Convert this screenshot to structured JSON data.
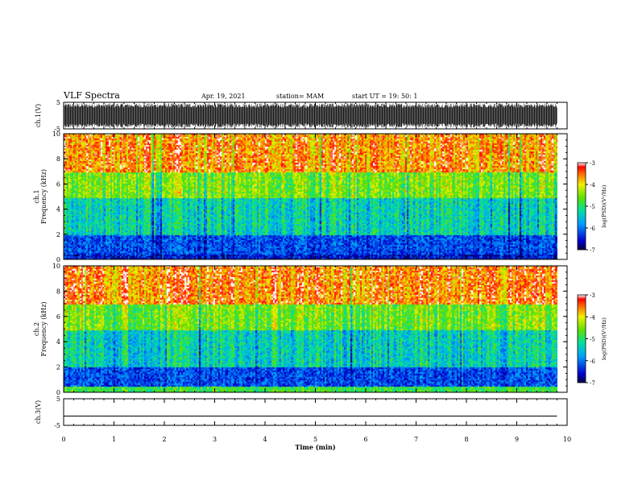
{
  "header": {
    "title": "VLF Spectra",
    "date": "Apr. 19, 2021",
    "station": "station= MAM",
    "start": "start  UT =   19: 50: 1"
  },
  "chart_data": [
    {
      "type": "line",
      "panel": "ch1-waveform",
      "ylabel": "ch.1(V)",
      "ylim": [
        -5,
        5
      ],
      "ytick_labels": [
        "5",
        "-5"
      ],
      "description_level": "dense noise spanning nearly full range"
    },
    {
      "type": "heatmap",
      "panel": "ch1-spectrogram",
      "ylabel": "ch.1\nFrequency  (kHz)",
      "ylim": [
        0,
        10
      ],
      "ytick_labels": [
        "0",
        "2",
        "4",
        "6",
        "8",
        "10"
      ],
      "colorbar": {
        "label": "log(PSD)(V²/Hz)",
        "range": [
          -7,
          -3
        ],
        "tick_labels": [
          "-3",
          "-4",
          "-5",
          "-6",
          "-7"
        ]
      },
      "bands_log_psd": [
        {
          "freq_khz": [
            0,
            0.5
          ],
          "level": -6.5
        },
        {
          "freq_khz": [
            0.5,
            2
          ],
          "level": -6.2
        },
        {
          "freq_khz": [
            2,
            5
          ],
          "level": -5.3
        },
        {
          "freq_khz": [
            5,
            7
          ],
          "level": -4.5
        },
        {
          "freq_khz": [
            7,
            10
          ],
          "level": -3.6
        }
      ]
    },
    {
      "type": "heatmap",
      "panel": "ch2-spectrogram",
      "ylabel": "ch.2\nFrequency  (kHz)",
      "ylim": [
        0,
        10
      ],
      "ytick_labels": [
        "0",
        "2",
        "4",
        "6",
        "8",
        "10"
      ],
      "colorbar": {
        "label": "log(PSD)(V²/Hz)",
        "range": [
          -7,
          -3
        ],
        "tick_labels": [
          "-3",
          "-4",
          "-5",
          "-6",
          "-7"
        ]
      },
      "bands_log_psd": [
        {
          "freq_khz": [
            0,
            0.5
          ],
          "level": -4.8
        },
        {
          "freq_khz": [
            0.5,
            2
          ],
          "level": -6.2
        },
        {
          "freq_khz": [
            2,
            5
          ],
          "level": -5.3
        },
        {
          "freq_khz": [
            5,
            7
          ],
          "level": -4.5
        },
        {
          "freq_khz": [
            7,
            10
          ],
          "level": -3.5
        }
      ]
    },
    {
      "type": "line",
      "panel": "ch3-waveform",
      "ylabel": "ch.3(V)",
      "ylim": [
        -5,
        5
      ],
      "ytick_labels": [
        "5",
        "-5"
      ],
      "x": [
        0,
        9.8
      ],
      "y": [
        -1.5,
        -1.5
      ]
    }
  ],
  "x_axis": {
    "label": "Time  (min)",
    "xlim": [
      0,
      10
    ],
    "data_end": 9.8,
    "tick_labels": [
      "0",
      "1",
      "2",
      "3",
      "4",
      "5",
      "6",
      "7",
      "8",
      "9",
      "10"
    ]
  }
}
